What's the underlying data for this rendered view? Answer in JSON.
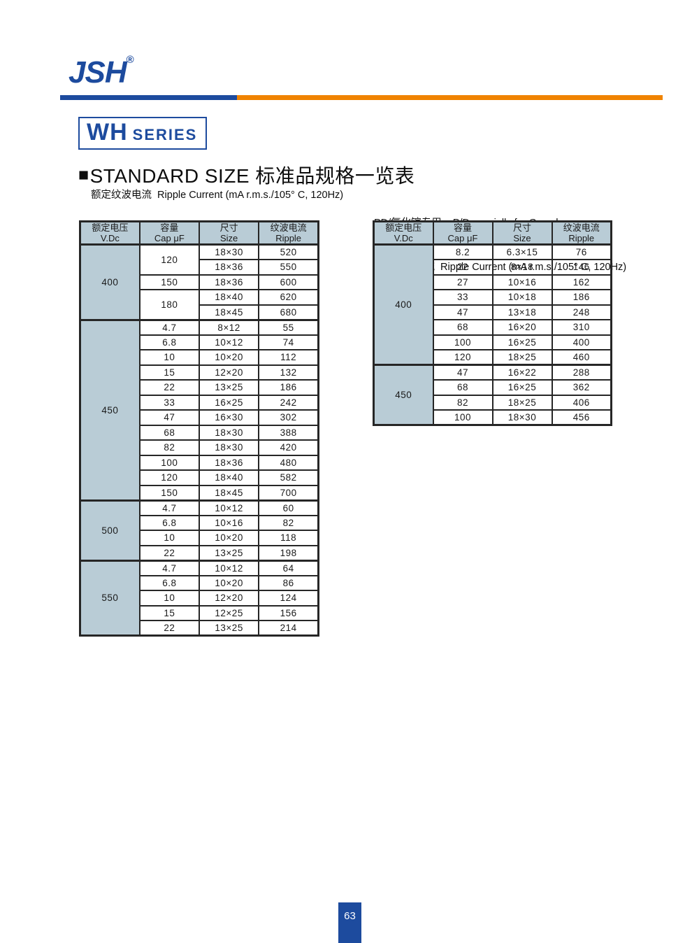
{
  "page": {
    "logo": "JSH",
    "logo_reg": "®",
    "footer_page": "63"
  },
  "series": {
    "main": "WH",
    "sub": "SERIES"
  },
  "heading": {
    "square": "■",
    "text": "STANDARD SIZE 标准品规格一览表"
  },
  "subtitles": {
    "left": "额定纹波电流  Ripple Current (mA r.m.s./105° C, 120Hz)",
    "right_line1": "PD/氮化镓专用    P/D specially for Gan charger",
    "right_line2": "额定纹波电流  Ripple Current (mA r.m.s./105° C, 120Hz)"
  },
  "colors": {
    "brand_blue": "#1d4b9e",
    "accent_orange": "#f08300",
    "table_header_bg": "#b9ccd6",
    "table_border": "#262626"
  },
  "tables": [
    {
      "name": "standard-size-table",
      "headers": [
        [
          "额定电压",
          "V.Dc"
        ],
        [
          "容量",
          "Cap  μF"
        ],
        [
          "尺寸",
          "Size"
        ],
        [
          "纹波电流",
          "Ripple"
        ]
      ],
      "groups": [
        {
          "voltage": "400",
          "rows": [
            {
              "cap": "120",
              "capspan": 2,
              "size": "18×30",
              "ripple": "520"
            },
            {
              "size": "18×36",
              "ripple": "550"
            },
            {
              "cap": "150",
              "size": "18×36",
              "ripple": "600"
            },
            {
              "cap": "180",
              "capspan": 2,
              "size": "18×40",
              "ripple": "620"
            },
            {
              "size": "18×45",
              "ripple": "680"
            }
          ]
        },
        {
          "voltage": "450",
          "rows": [
            {
              "cap": "4.7",
              "size": "8×12",
              "ripple": "55"
            },
            {
              "cap": "6.8",
              "size": "10×12",
              "ripple": "74"
            },
            {
              "cap": "10",
              "size": "10×20",
              "ripple": "112"
            },
            {
              "cap": "15",
              "size": "12×20",
              "ripple": "132"
            },
            {
              "cap": "22",
              "size": "13×25",
              "ripple": "186"
            },
            {
              "cap": "33",
              "size": "16×25",
              "ripple": "242"
            },
            {
              "cap": "47",
              "size": "16×30",
              "ripple": "302"
            },
            {
              "cap": "68",
              "size": "18×30",
              "ripple": "388"
            },
            {
              "cap": "82",
              "size": "18×30",
              "ripple": "420"
            },
            {
              "cap": "100",
              "size": "18×36",
              "ripple": "480"
            },
            {
              "cap": "120",
              "size": "18×40",
              "ripple": "582"
            },
            {
              "cap": "150",
              "size": "18×45",
              "ripple": "700"
            }
          ]
        },
        {
          "voltage": "500",
          "rows": [
            {
              "cap": "4.7",
              "size": "10×12",
              "ripple": "60"
            },
            {
              "cap": "6.8",
              "size": "10×16",
              "ripple": "82"
            },
            {
              "cap": "10",
              "size": "10×20",
              "ripple": "118"
            },
            {
              "cap": "22",
              "size": "13×25",
              "ripple": "198"
            }
          ]
        },
        {
          "voltage": "550",
          "rows": [
            {
              "cap": "4.7",
              "size": "10×12",
              "ripple": "64"
            },
            {
              "cap": "6.8",
              "size": "10×20",
              "ripple": "86"
            },
            {
              "cap": "10",
              "size": "12×20",
              "ripple": "124"
            },
            {
              "cap": "15",
              "size": "12×25",
              "ripple": "156"
            },
            {
              "cap": "22",
              "size": "13×25",
              "ripple": "214"
            }
          ]
        }
      ]
    },
    {
      "name": "pd-gan-charger-table",
      "headers": [
        [
          "额定电压",
          "V.Dc"
        ],
        [
          "容量",
          "Cap μF"
        ],
        [
          "尺寸",
          "Size"
        ],
        [
          "纹波电流",
          "Ripple"
        ]
      ],
      "groups": [
        {
          "voltage": "400",
          "rows": [
            {
              "cap": "8.2",
              "size": "6.3×15",
              "ripple": "76"
            },
            {
              "cap": "22",
              "size": "8×18",
              "ripple": "146"
            },
            {
              "cap": "27",
              "size": "10×16",
              "ripple": "162"
            },
            {
              "cap": "33",
              "size": "10×18",
              "ripple": "186"
            },
            {
              "cap": "47",
              "size": "13×18",
              "ripple": "248"
            },
            {
              "cap": "68",
              "size": "16×20",
              "ripple": "310"
            },
            {
              "cap": "100",
              "size": "16×25",
              "ripple": "400"
            },
            {
              "cap": "120",
              "size": "18×25",
              "ripple": "460"
            }
          ]
        },
        {
          "voltage": "450",
          "rows": [
            {
              "cap": "47",
              "size": "16×22",
              "ripple": "288"
            },
            {
              "cap": "68",
              "size": "16×25",
              "ripple": "362"
            },
            {
              "cap": "82",
              "size": "18×25",
              "ripple": "406"
            },
            {
              "cap": "100",
              "size": "18×30",
              "ripple": "456"
            }
          ]
        }
      ]
    }
  ]
}
